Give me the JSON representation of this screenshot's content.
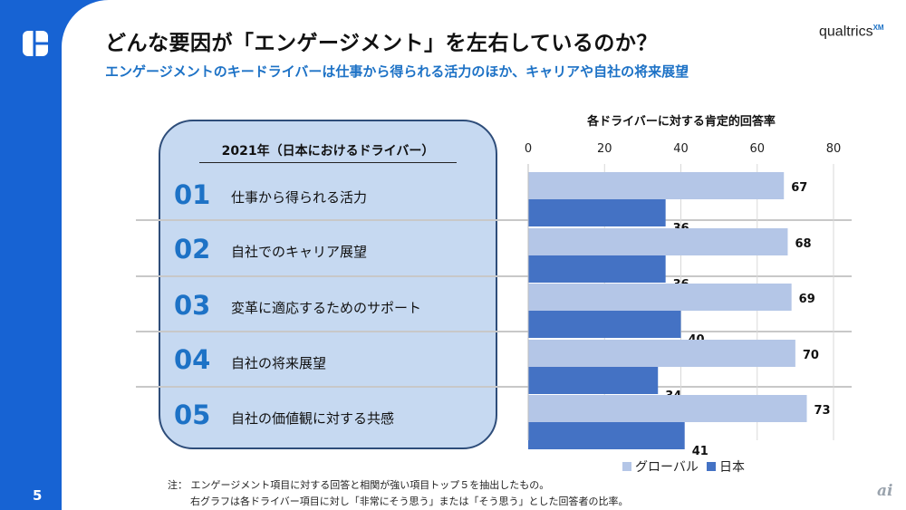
{
  "page_number": "5",
  "title": "どんな要因が「エンゲージメント」を左右しているのか？",
  "subtitle": "エンゲージメントのキードライバーは仕事から得られる活力のほか、キャリアや自社の将来展望",
  "brand": "qualtrics",
  "brand_sup": "XM",
  "box_title": "2021年（日本におけるドライバー）",
  "drivers": [
    {
      "num": "01",
      "label": "仕事から得られる活力"
    },
    {
      "num": "02",
      "label": "自社でのキャリア展望"
    },
    {
      "num": "03",
      "label": "変革に適応するためのサポート"
    },
    {
      "num": "04",
      "label": "自社の将来展望"
    },
    {
      "num": "05",
      "label": "自社の価値観に対する共感"
    }
  ],
  "notes": [
    "注：  エンゲージメント項目に対する回答と相関が強い項目トップ５を抽出したもの。",
    "右グラフは各ドライバー項目に対し「非常にそう思う」または「そう思う」とした回答者の比率。"
  ],
  "watermark": "ai",
  "chart_data": {
    "type": "bar",
    "orientation": "horizontal",
    "title": "各ドライバーに対する肯定的回答率",
    "categories": [
      "仕事から得られる活力",
      "自社でのキャリア展望",
      "変革に適応するためのサポート",
      "自社の将来展望",
      "自社の価値観に対する共感"
    ],
    "series": [
      {
        "name": "グローバル",
        "color": "#b4c6e7",
        "values": [
          67,
          68,
          69,
          70,
          73
        ]
      },
      {
        "name": "日本",
        "color": "#4472c4",
        "values": [
          36,
          36,
          40,
          34,
          41
        ]
      }
    ],
    "xlim": [
      0,
      80
    ],
    "ticks": [
      0,
      20,
      40,
      60,
      80
    ],
    "grid": true,
    "legend": "bottom"
  }
}
